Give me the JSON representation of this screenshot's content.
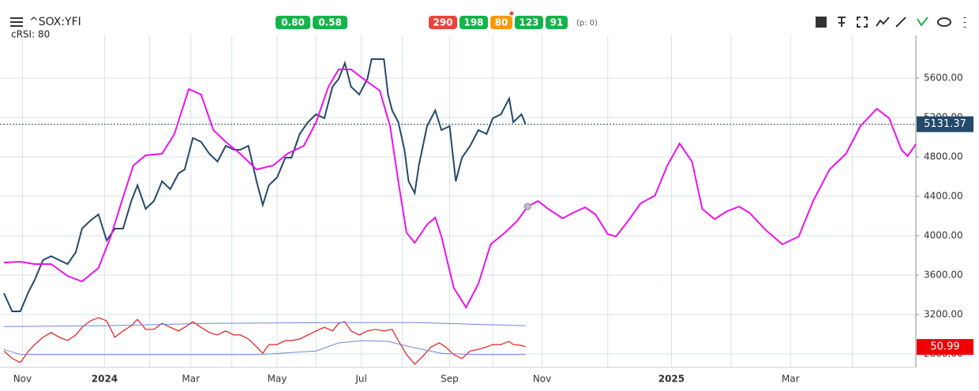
{
  "chart_data": {
    "type": "line",
    "title": "^SOX:YFI",
    "subtitle": "cRSI: 80",
    "toolbar": {
      "left_badges": [
        {
          "text": "0.80",
          "color": "#16b34a"
        },
        {
          "text": "0.58",
          "color": "#16b34a"
        }
      ],
      "center_badges": [
        {
          "text": "290",
          "color": "#e8453c"
        },
        {
          "text": "198",
          "color": "#16b34a"
        },
        {
          "text": "80",
          "color": "#f59a0c"
        },
        {
          "text": "123",
          "color": "#16b34a"
        },
        {
          "text": "91",
          "color": "#16b34a"
        }
      ],
      "note": "(p: 0)"
    },
    "xlim": [
      0,
      444
    ],
    "xticks": [
      {
        "value": 9,
        "label": "Nov"
      },
      {
        "value": 49,
        "label": "2024",
        "bold": true
      },
      {
        "value": 91,
        "label": "Mar"
      },
      {
        "value": 133,
        "label": "May"
      },
      {
        "value": 174,
        "label": "Jul"
      },
      {
        "value": 217,
        "label": "Sep"
      },
      {
        "value": 262,
        "label": "Nov"
      },
      {
        "value": 325,
        "label": "2025",
        "bold": true
      },
      {
        "value": 383,
        "label": "Mar"
      }
    ],
    "xgrid": [
      71,
      111,
      152,
      194,
      238,
      294,
      354,
      413
    ],
    "ylim": [
      2664,
      6032
    ],
    "yticks": [
      {
        "value": 2800,
        "label": "2800.00"
      },
      {
        "value": 3200,
        "label": "3200.00"
      },
      {
        "value": 3600,
        "label": "3600.00"
      },
      {
        "value": 4000,
        "label": "4000.00"
      },
      {
        "value": 4400,
        "label": "4400.00"
      },
      {
        "value": 4800,
        "label": "4800.00"
      },
      {
        "value": 5200,
        "label": "5200.00"
      },
      {
        "value": 5600,
        "label": "5600.00"
      }
    ],
    "y2lim": [
      0,
      130
    ],
    "grid": true,
    "series": [
      {
        "name": "^SOX:YFI",
        "color": "#24496b",
        "last_label": "5131.37",
        "x": [
          0,
          4,
          8,
          12,
          15,
          19,
          23,
          27,
          31,
          35,
          38,
          42,
          46,
          50,
          54,
          58,
          62,
          65,
          69,
          73,
          77,
          81,
          85,
          88,
          92,
          96,
          100,
          104,
          108,
          112,
          115,
          119,
          123,
          126,
          129,
          133,
          137,
          140,
          144,
          148,
          152,
          156,
          160,
          163,
          166,
          169,
          173,
          177,
          179,
          183,
          185,
          187,
          189,
          192,
          195,
          197,
          200,
          202,
          206,
          210,
          213,
          217,
          220,
          223,
          227,
          231,
          235,
          238,
          242,
          246,
          248,
          252,
          254
        ],
        "values": [
          3416,
          3232,
          3232,
          3432,
          3552,
          3752,
          3792,
          3752,
          3712,
          3832,
          4072,
          4152,
          4216,
          3952,
          4072,
          4072,
          4352,
          4512,
          4272,
          4352,
          4552,
          4472,
          4632,
          4672,
          4992,
          4952,
          4832,
          4752,
          4912,
          4872,
          4872,
          4912,
          4552,
          4312,
          4512,
          4592,
          4792,
          4792,
          5032,
          5152,
          5232,
          5192,
          5512,
          5592,
          5752,
          5512,
          5432,
          5592,
          5792,
          5792,
          5792,
          5432,
          5272,
          5152,
          4872,
          4552,
          4432,
          4712,
          5112,
          5272,
          5072,
          5112,
          4552,
          4792,
          4912,
          5072,
          5032,
          5192,
          5232,
          5392,
          5152,
          5232,
          5131.37
        ]
      },
      {
        "color": "#ee11ee",
        "marker": {
          "x": 255,
          "value": 4296
        },
        "x": [
          0,
          8,
          15,
          23,
          31,
          38,
          46,
          52,
          58,
          63,
          69,
          77,
          83,
          90,
          96,
          102,
          108,
          115,
          123,
          131,
          138,
          146,
          152,
          158,
          163,
          169,
          175,
          183,
          188,
          192,
          196,
          200,
          206,
          210,
          213,
          219,
          225,
          231,
          237,
          244,
          250,
          255,
          260,
          265,
          272,
          277,
          283,
          288,
          294,
          298,
          304,
          310,
          317,
          323,
          329,
          335,
          340,
          346,
          352,
          358,
          363,
          371,
          379,
          387,
          394,
          402,
          410,
          417,
          425,
          431,
          437,
          440,
          444
        ],
        "values": [
          3728,
          3736,
          3712,
          3712,
          3592,
          3536,
          3672,
          3992,
          4392,
          4712,
          4816,
          4832,
          5032,
          5488,
          5432,
          5072,
          4952,
          4832,
          4672,
          4712,
          4832,
          4912,
          5152,
          5512,
          5688,
          5688,
          5592,
          5472,
          5112,
          4552,
          4032,
          3928,
          4112,
          4184,
          3992,
          3472,
          3272,
          3512,
          3912,
          4032,
          4152,
          4296,
          4352,
          4272,
          4176,
          4232,
          4288,
          4216,
          4016,
          3992,
          4152,
          4328,
          4408,
          4712,
          4936,
          4752,
          4272,
          4168,
          4248,
          4296,
          4232,
          4056,
          3912,
          3992,
          4352,
          4672,
          4832,
          5112,
          5288,
          5192,
          4872,
          4808,
          4928
        ]
      },
      {
        "color": "#e41a1a",
        "axis": "y2",
        "last_label": "50.99",
        "label_color": "#f00000",
        "x": [
          0,
          4,
          8,
          12,
          15,
          19,
          23,
          27,
          31,
          35,
          38,
          42,
          46,
          50,
          54,
          58,
          62,
          65,
          69,
          73,
          77,
          81,
          85,
          88,
          92,
          96,
          100,
          104,
          108,
          112,
          115,
          119,
          123,
          126,
          129,
          133,
          137,
          140,
          144,
          148,
          152,
          156,
          160,
          163,
          166,
          169,
          173,
          177,
          181,
          185,
          189,
          192,
          196,
          200,
          204,
          208,
          212,
          215,
          219,
          223,
          227,
          231,
          235,
          238,
          242,
          246,
          248,
          252,
          254
        ],
        "values": [
          41,
          22,
          12,
          41,
          57,
          75,
          87,
          75,
          67,
          81,
          100,
          116,
          124,
          116,
          75,
          91,
          104,
          120,
          95,
          95,
          110,
          100,
          91,
          100,
          114,
          100,
          87,
          81,
          91,
          81,
          81,
          71,
          51,
          35,
          57,
          57,
          67,
          67,
          71,
          81,
          91,
          100,
          91,
          110,
          114,
          91,
          81,
          91,
          95,
          91,
          95,
          67,
          32,
          8,
          28,
          51,
          61,
          51,
          32,
          22,
          41,
          45,
          51,
          57,
          57,
          65,
          57,
          55,
          50.99
        ]
      },
      {
        "color": "#6f86d6",
        "axis": "y2",
        "x": [
          0,
          50,
          100,
          170,
          200,
          254
        ],
        "values": [
          102,
          104,
          110,
          112,
          112,
          104
        ]
      },
      {
        "color": "#6f86d6",
        "axis": "y2",
        "x": [
          0,
          8,
          37,
          75,
          125,
          152,
          163,
          175,
          187,
          198,
          213,
          229,
          254
        ],
        "values": [
          45,
          32,
          32,
          32,
          32,
          41,
          61,
          67,
          65,
          51,
          35,
          32,
          32
        ]
      }
    ]
  }
}
